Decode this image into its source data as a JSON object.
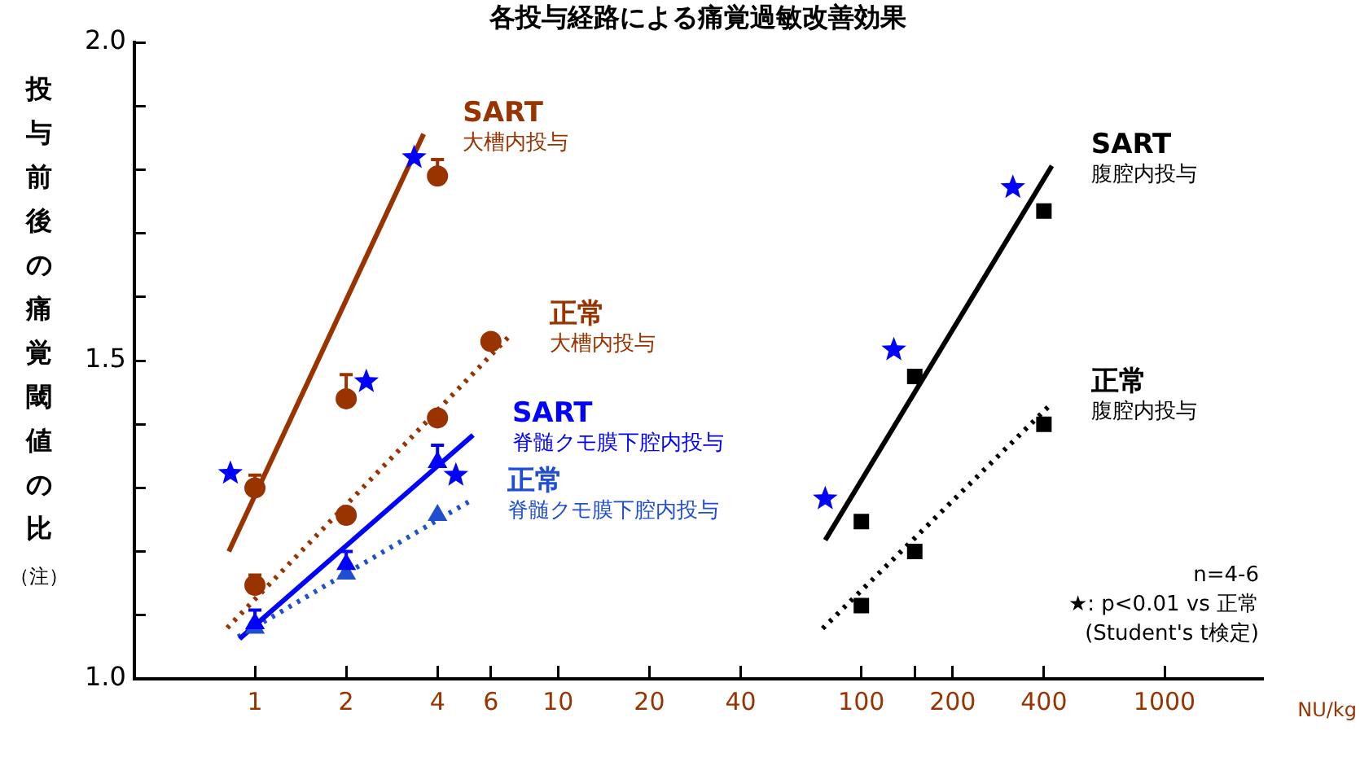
{
  "chart_data": {
    "type": "scatter",
    "title": "各投与経路による痛覚過敏改善効果",
    "ylabel": "投与前後の痛覚閾値の比",
    "annotations": [
      "（注）",
      "n=4-6",
      "★: p<0.01 vs 正常",
      "(Student's t検定)",
      "NU/kg",
      {
        "text": "大槽内投与",
        "x": 3.6,
        "y": 1.856
      },
      {
        "text": "大槽内投与",
        "x": 6.95,
        "y": 1.54
      },
      {
        "text": "脊髄クモ膜下腔内投与",
        "x": 5.24,
        "y": 1.383
      },
      {
        "text": "脊髄クモ膜下腔内投与",
        "x": 5.06,
        "y": 1.278
      },
      {
        "text": "腹腔内投与",
        "x": 425,
        "y": 1.806
      },
      {
        "text": "腹腔内投与",
        "x": 425,
        "y": 1.433
      }
    ],
    "log": "x",
    "xlim": [
      0.4,
      2100
    ],
    "xticks": [
      1,
      2,
      4,
      6,
      10,
      20,
      40,
      100,
      {
        "value": 150,
        "label": null
      },
      200,
      400,
      1000
    ],
    "ylim": [
      1,
      2
    ],
    "yticks": [
      {
        "value": 1,
        "label": "1.0"
      },
      {
        "value": 1.1,
        "label": null
      },
      {
        "value": 1.2,
        "label": null
      },
      {
        "value": 1.3,
        "label": null
      },
      {
        "value": 1.4,
        "label": null
      },
      {
        "value": 1.5,
        "label": "1.5"
      },
      {
        "value": 1.6,
        "label": null
      },
      {
        "value": 1.7,
        "label": null
      },
      {
        "value": 1.8,
        "label": null
      },
      {
        "value": 1.9,
        "label": null
      },
      {
        "value": 2,
        "label": "2.0"
      }
    ],
    "grid": false,
    "legend": false,
    "series": [
      {
        "type": "scatter",
        "marker": "circle",
        "color": "#993300",
        "x": [
          1,
          2,
          4
        ],
        "values": [
          1.3,
          1.44,
          1.79
        ],
        "errors": [
          [
            1.3,
            1.32
          ],
          [
            1.44,
            1.478
          ],
          [
            1.79,
            1.816
          ]
        ]
      },
      {
        "type": "scatter",
        "marker": "circle",
        "color": "#993300",
        "x": [
          1,
          2,
          4,
          6
        ],
        "values": [
          1.147,
          1.257,
          1.41,
          1.53
        ],
        "errors": [
          [
            1.147,
            1.163
          ],
          null,
          null,
          null
        ]
      },
      {
        "type": "scatter",
        "marker": "triangle",
        "color": "#0000ff",
        "x": [
          1,
          2,
          4
        ],
        "values": [
          1.087,
          1.18,
          1.34
        ],
        "errors": [
          [
            1.087,
            1.108
          ],
          [
            1.18,
            1.2
          ],
          [
            1.34,
            1.367
          ]
        ]
      },
      {
        "type": "scatter",
        "marker": "triangle",
        "color": "#1f4fd0",
        "x": [
          1,
          2,
          4
        ],
        "values": [
          1.08,
          1.165,
          1.257
        ]
      },
      {
        "type": "scatter",
        "marker": "square",
        "color": "#000000",
        "x": [
          100,
          150,
          400
        ],
        "values": [
          1.247,
          1.475,
          1.735
        ]
      },
      {
        "type": "scatter",
        "marker": "square",
        "color": "#000000",
        "x": [
          100,
          150,
          400
        ],
        "values": [
          1.115,
          1.2,
          1.4
        ]
      },
      {
        "type": "line",
        "name": "SART",
        "line_style": "solid",
        "color": "#993300",
        "x": [
          0.82,
          3.6
        ],
        "values": [
          1.2,
          1.856
        ]
      },
      {
        "type": "line",
        "name": "正常",
        "line_style": "dotted",
        "color": "#993300",
        "x": [
          0.81,
          6.95
        ],
        "values": [
          1.08,
          1.54
        ]
      },
      {
        "type": "line",
        "name": "SART",
        "line_style": "solid",
        "color": "#0000ff",
        "x": [
          0.89,
          5.24
        ],
        "values": [
          1.063,
          1.383
        ]
      },
      {
        "type": "line",
        "name": "正常",
        "line_style": "dotted",
        "color": "#1f4fd0",
        "x": [
          0.88,
          5.06
        ],
        "values": [
          1.066,
          1.278
        ]
      },
      {
        "type": "line",
        "name": "SART",
        "line_style": "solid",
        "color": "#000000",
        "x": [
          76,
          425
        ],
        "values": [
          1.218,
          1.806
        ]
      },
      {
        "type": "line",
        "name": "正常",
        "line_style": "dotted",
        "color": "#000000",
        "x": [
          74.5,
          425
        ],
        "values": [
          1.079,
          1.433
        ]
      },
      {
        "type": "scatter",
        "marker": "star",
        "color": "#0000ff",
        "x": [
          0.83,
          2.33,
          3.35,
          4.6,
          76,
          128,
          316
        ],
        "values": [
          1.323,
          1.467,
          1.819,
          1.32,
          1.283,
          1.517,
          1.772
        ]
      }
    ]
  }
}
